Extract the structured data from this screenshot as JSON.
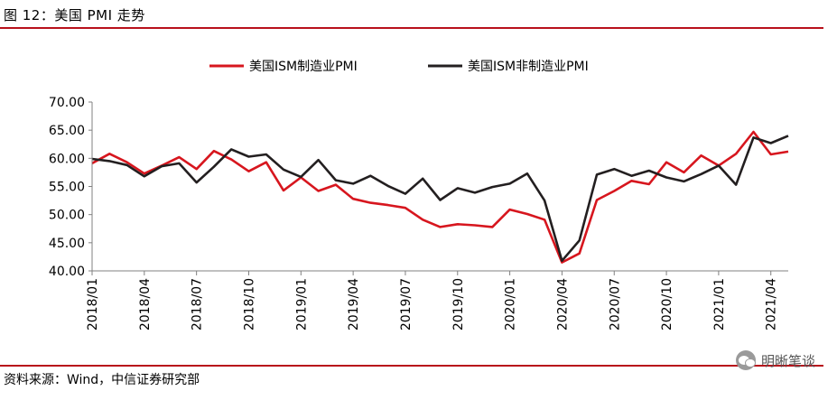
{
  "header": {
    "figure_title": "图 12：美国 PMI 走势"
  },
  "footer": {
    "source": "资料来源：Wind，中信证券研究部",
    "watermark": "明晰笔谈"
  },
  "colors": {
    "rule": "#b8111b",
    "manufacturing": "#d7161e",
    "non_manufacturing": "#231f20"
  },
  "chart_data": {
    "type": "line",
    "title": "",
    "xlabel": "",
    "ylabel": "",
    "ylim": [
      40,
      70
    ],
    "yticks": [
      "70.00",
      "65.00",
      "60.00",
      "55.00",
      "50.00",
      "45.00",
      "40.00"
    ],
    "ytick_values": [
      70,
      65,
      60,
      55,
      50,
      45,
      40
    ],
    "x": [
      "2018/01",
      "2018/02",
      "2018/03",
      "2018/04",
      "2018/05",
      "2018/06",
      "2018/07",
      "2018/08",
      "2018/09",
      "2018/10",
      "2018/11",
      "2018/12",
      "2019/01",
      "2019/02",
      "2019/03",
      "2019/04",
      "2019/05",
      "2019/06",
      "2019/07",
      "2019/08",
      "2019/09",
      "2019/10",
      "2019/11",
      "2019/12",
      "2020/01",
      "2020/02",
      "2020/03",
      "2020/04",
      "2020/05",
      "2020/06",
      "2020/07",
      "2020/08",
      "2020/09",
      "2020/10",
      "2020/11",
      "2020/12",
      "2021/01",
      "2021/02",
      "2021/03",
      "2021/04",
      "2021/05"
    ],
    "xtick_labels": [
      "2018/01",
      "2018/04",
      "2018/07",
      "2018/10",
      "2019/01",
      "2019/04",
      "2019/07",
      "2019/10",
      "2020/01",
      "2020/04",
      "2020/07",
      "2020/10",
      "2021/01",
      "2021/04"
    ],
    "legend_position": "top",
    "series": [
      {
        "name": "美国ISM制造业PMI",
        "color": "#d7161e",
        "values": [
          59.1,
          60.8,
          59.3,
          57.3,
          58.7,
          60.2,
          58.1,
          61.3,
          59.8,
          57.7,
          59.3,
          54.3,
          56.6,
          54.2,
          55.3,
          52.8,
          52.1,
          51.7,
          51.2,
          49.1,
          47.8,
          48.3,
          48.1,
          47.8,
          50.9,
          50.1,
          49.1,
          41.5,
          43.1,
          52.6,
          54.2,
          56.0,
          55.4,
          59.3,
          57.5,
          60.5,
          58.7,
          60.8,
          64.7,
          60.7,
          61.2
        ]
      },
      {
        "name": "美国ISM非制造业PMI",
        "color": "#231f20",
        "values": [
          59.9,
          59.5,
          58.8,
          56.8,
          58.6,
          59.1,
          55.7,
          58.5,
          61.6,
          60.3,
          60.7,
          58.0,
          56.7,
          59.7,
          56.1,
          55.5,
          56.9,
          55.1,
          53.7,
          56.4,
          52.6,
          54.7,
          53.9,
          54.9,
          55.5,
          57.3,
          52.5,
          41.8,
          45.4,
          57.1,
          58.1,
          56.9,
          57.8,
          56.6,
          55.9,
          57.2,
          58.7,
          55.3,
          63.7,
          62.7,
          64.0
        ]
      }
    ]
  }
}
